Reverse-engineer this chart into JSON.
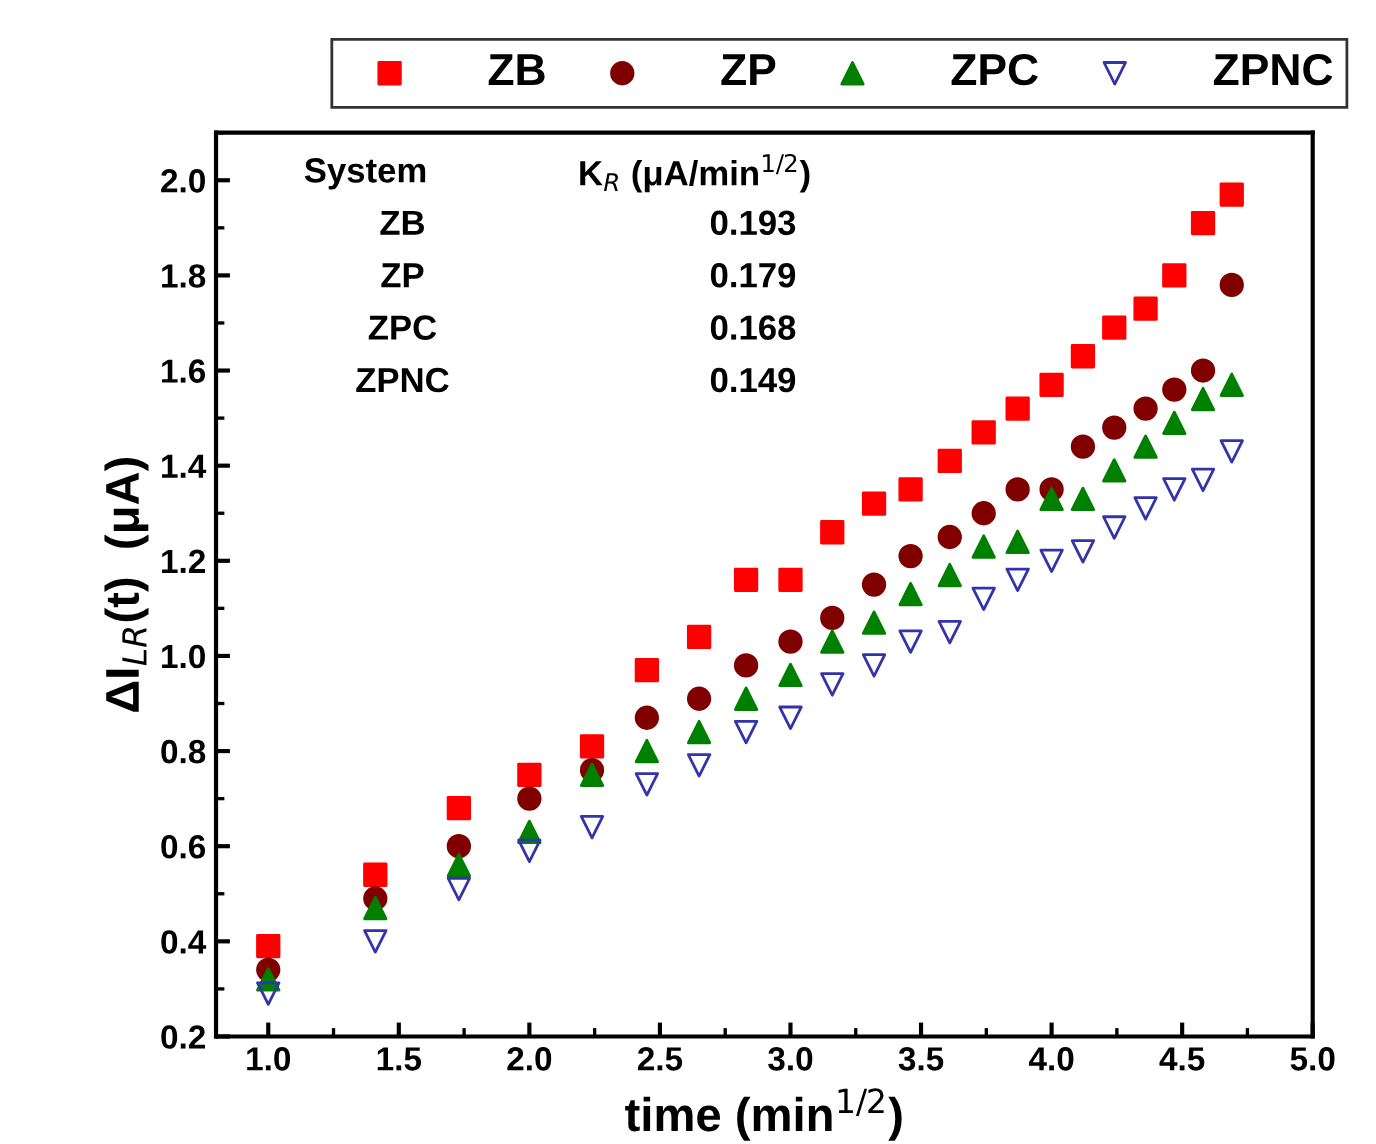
{
  "chart_data": {
    "type": "scatter",
    "xlabel": "time (min$^{1/2}$)",
    "ylabel": "ΔI$_{LR}$(t)  (μA)",
    "x": [
      1.0,
      1.41,
      1.73,
      2.0,
      2.24,
      2.45,
      2.65,
      2.83,
      3.0,
      3.16,
      3.32,
      3.46,
      3.61,
      3.74,
      3.87,
      4.0,
      4.12,
      4.24,
      4.36,
      4.47,
      4.58,
      4.69
    ],
    "series": [
      {
        "name": "ZB",
        "color": "#ff0000",
        "marker": "square",
        "values": [
          0.39,
          0.54,
          0.68,
          0.75,
          0.81,
          0.97,
          1.04,
          1.16,
          1.16,
          1.26,
          1.32,
          1.35,
          1.41,
          1.47,
          1.52,
          1.57,
          1.63,
          1.69,
          1.73,
          1.8,
          1.91,
          1.97
        ]
      },
      {
        "name": "ZP",
        "color": "#800000",
        "marker": "circle",
        "values": [
          0.34,
          0.49,
          0.6,
          0.7,
          0.76,
          0.87,
          0.91,
          0.98,
          1.03,
          1.08,
          1.15,
          1.21,
          1.25,
          1.3,
          1.35,
          1.35,
          1.44,
          1.48,
          1.52,
          1.56,
          1.6,
          1.78
        ]
      },
      {
        "name": "ZPC",
        "color": "#008000",
        "marker": "triangle",
        "values": [
          0.32,
          0.47,
          0.56,
          0.63,
          0.75,
          0.8,
          0.84,
          0.91,
          0.96,
          1.03,
          1.07,
          1.13,
          1.17,
          1.23,
          1.24,
          1.33,
          1.33,
          1.39,
          1.44,
          1.49,
          1.54,
          1.57
        ]
      },
      {
        "name": "ZPNC",
        "color": "#3333aa",
        "marker": "triangle_down_open",
        "values": [
          0.29,
          0.4,
          0.51,
          0.59,
          0.64,
          0.73,
          0.77,
          0.84,
          0.87,
          0.94,
          0.98,
          1.03,
          1.05,
          1.12,
          1.16,
          1.2,
          1.22,
          1.27,
          1.31,
          1.35,
          1.37,
          1.43
        ]
      }
    ],
    "xlim": [
      0.8,
      5.0
    ],
    "xticks": [
      {
        "value": 1.0,
        "label": "1.0"
      },
      {
        "value": 1.5,
        "label": "1.5"
      },
      {
        "value": 2.0,
        "label": "2.0"
      },
      {
        "value": 2.5,
        "label": "2.5"
      },
      {
        "value": 3.0,
        "label": "3.0"
      },
      {
        "value": 3.5,
        "label": "3.5"
      },
      {
        "value": 4.0,
        "label": "4.0"
      },
      {
        "value": 4.5,
        "label": "4.5"
      },
      {
        "value": 5.0,
        "label": "5.0"
      }
    ],
    "ylim": [
      0.2,
      2.1
    ],
    "yticks": [
      0.2,
      0.4,
      0.6,
      0.8,
      {
        "value": 1.0,
        "label": "1.0"
      },
      1.2,
      1.4,
      1.6,
      1.8,
      {
        "value": 2.0,
        "label": "2.0"
      }
    ],
    "grid": false,
    "legend": "top",
    "annotations": [
      "System",
      "K$_{R}$ (μA/min$^{1/2}$)",
      "ZB",
      "0.193",
      "ZP",
      "0.179",
      "ZPC",
      "0.168",
      "ZPNC",
      "0.149"
    ]
  }
}
